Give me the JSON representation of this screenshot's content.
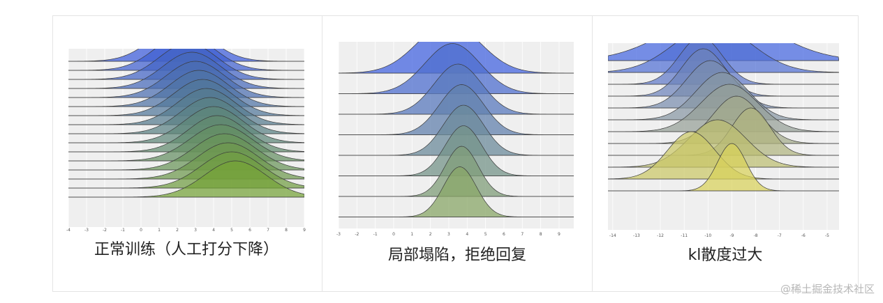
{
  "chart_data": [
    {
      "type": "area",
      "title": "正常训练（人工打分下降）",
      "x_ticks": [
        "-4",
        "-3",
        "-2",
        "-1",
        "0",
        "1",
        "2",
        "3",
        "4",
        "5",
        "6",
        "7",
        "8",
        "9"
      ],
      "xlim": [
        -4,
        9
      ],
      "series": [
        {
          "mean": 2.2,
          "sd": 1.6
        },
        {
          "mean": 2.4,
          "sd": 1.6
        },
        {
          "mean": 2.6,
          "sd": 1.6
        },
        {
          "mean": 2.8,
          "sd": 1.6
        },
        {
          "mean": 3.0,
          "sd": 1.6
        },
        {
          "mean": 3.2,
          "sd": 1.6
        },
        {
          "mean": 3.4,
          "sd": 1.6
        },
        {
          "mean": 3.6,
          "sd": 1.6
        },
        {
          "mean": 3.8,
          "sd": 1.6
        },
        {
          "mean": 4.0,
          "sd": 1.6
        },
        {
          "mean": 4.2,
          "sd": 1.6
        },
        {
          "mean": 4.4,
          "sd": 1.7
        },
        {
          "mean": 4.6,
          "sd": 1.7
        },
        {
          "mean": 4.8,
          "sd": 1.7
        },
        {
          "mean": 5.0,
          "sd": 1.7
        },
        {
          "mean": 5.2,
          "sd": 1.7
        }
      ],
      "top_color": "#3c5bdb",
      "bottom_color": "#74a238"
    },
    {
      "type": "area",
      "title": "局部塌陷，拒绝回复",
      "x_ticks": [
        "-3",
        "-2",
        "-1",
        "0",
        "1",
        "2",
        "3",
        "4",
        "5",
        "6",
        "7",
        "8",
        "9"
      ],
      "xlim": [
        -3,
        9.8
      ],
      "series": [
        {
          "mean": 3.0,
          "sd": 1.7
        },
        {
          "mean": 3.2,
          "sd": 1.5
        },
        {
          "mean": 3.5,
          "sd": 1.3
        },
        {
          "mean": 3.7,
          "sd": 1.2
        },
        {
          "mean": 3.8,
          "sd": 1.1
        },
        {
          "mean": 3.8,
          "sd": 1.0
        },
        {
          "mean": 3.7,
          "sd": 0.9
        },
        {
          "mean": 3.6,
          "sd": 0.9
        }
      ],
      "top_color": "#4566e0",
      "bottom_color": "#8aa768"
    },
    {
      "type": "area",
      "title": "kl散度过大",
      "x_ticks": [
        "-14",
        "-13",
        "-12",
        "-11",
        "-10",
        "-9",
        "-8",
        "-7",
        "-6",
        "-5"
      ],
      "xlim": [
        -14.2,
        -4.5
      ],
      "series": [
        {
          "mean": -9.5,
          "sd": 2.2
        },
        {
          "mean": -9.8,
          "sd": 1.6
        },
        {
          "mean": -10.3,
          "sd": 0.9
        },
        {
          "mean": -10.2,
          "sd": 0.9
        },
        {
          "mean": -9.9,
          "sd": 1.0
        },
        {
          "mean": -9.4,
          "sd": 1.1
        },
        {
          "mean": -9.1,
          "sd": 1.2
        },
        {
          "mean": -8.8,
          "sd": 1.0
        },
        {
          "mean": -8.2,
          "sd": 0.8
        },
        {
          "mean": -9.6,
          "sd": 1.2
        },
        {
          "mean": -10.7,
          "sd": 1.0
        },
        {
          "mean": -9.0,
          "sd": 0.6
        }
      ],
      "top_color": "#4566e0",
      "bottom_color": "#d8d15a"
    }
  ],
  "watermark": "@稀土掘金技术社区"
}
